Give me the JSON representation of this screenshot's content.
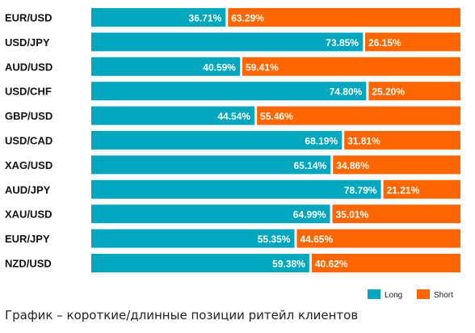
{
  "chart_data": {
    "type": "bar",
    "orientation": "horizontal",
    "stacked": true,
    "categories": [
      "EUR/USD",
      "USD/JPY",
      "AUD/USD",
      "USD/CHF",
      "GBP/USD",
      "USD/CAD",
      "XAG/USD",
      "AUD/JPY",
      "XAU/USD",
      "EUR/JPY",
      "NZD/USD"
    ],
    "series": [
      {
        "name": "Long",
        "values": [
          36.71,
          73.85,
          40.59,
          74.8,
          44.54,
          68.19,
          65.14,
          78.79,
          64.99,
          55.35,
          59.38
        ]
      },
      {
        "name": "Short",
        "values": [
          63.29,
          26.15,
          59.41,
          25.2,
          55.46,
          31.81,
          34.86,
          21.21,
          35.01,
          44.65,
          40.62
        ]
      }
    ],
    "value_labels": {
      "Long": [
        "36.71%",
        "73.85%",
        "40.59%",
        "74.80%",
        "44.54%",
        "68.19%",
        "65.14%",
        "78.79%",
        "64.99%",
        "55.35%",
        "59.38%"
      ],
      "Short": [
        "63.29%",
        "26.15%",
        "59.41%",
        "25.20%",
        "55.46%",
        "31.81%",
        "34.86%",
        "21.21%",
        "35.01%",
        "44.65%",
        "40.62%"
      ]
    },
    "xlim": [
      0,
      100
    ],
    "grid": false,
    "legend_position": "bottom-right",
    "colors": {
      "Long": "#00a7bf",
      "Short": "#ff6600"
    }
  },
  "caption": "График – короткие/длинные позиции ритейл клиентов"
}
